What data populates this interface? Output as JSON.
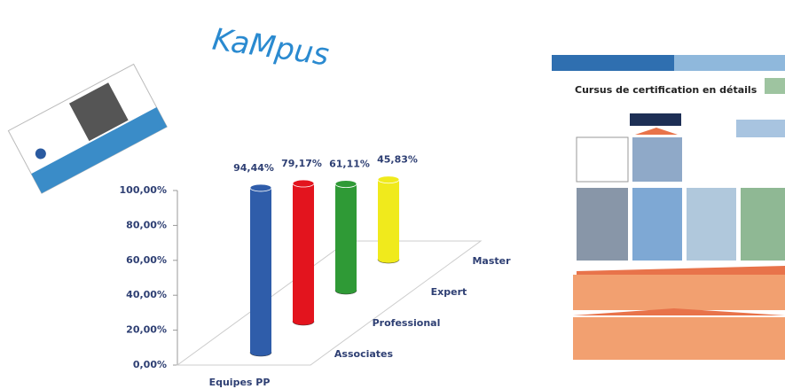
{
  "logo": "KaMpus",
  "document": {
    "banner": "Cursus de certification en détails"
  },
  "chart_data": {
    "type": "bar3d",
    "categories": [
      "Equipes PP"
    ],
    "series": [
      {
        "name": "Associates",
        "color": "#2f5daa",
        "values": [
          94.44
        ],
        "value_labels": [
          "94,44%"
        ]
      },
      {
        "name": "Professional",
        "color": "#e3141e",
        "values": [
          79.17
        ],
        "value_labels": [
          "79,17%"
        ]
      },
      {
        "name": "Expert",
        "color": "#2f9a36",
        "values": [
          61.11
        ],
        "value_labels": [
          "61,11%"
        ]
      },
      {
        "name": "Master",
        "color": "#f0ea1c",
        "values": [
          45.83
        ],
        "value_labels": [
          "45,83%"
        ]
      }
    ],
    "ylim": [
      0,
      100
    ],
    "yticks": [
      {
        "value": 0,
        "label": "0,00%"
      },
      {
        "value": 20,
        "label": "20,00%"
      },
      {
        "value": 40,
        "label": "40,00%"
      },
      {
        "value": 60,
        "label": "60,00%"
      },
      {
        "value": 80,
        "label": "80,00%"
      },
      {
        "value": 100,
        "label": "100,00%"
      }
    ]
  }
}
